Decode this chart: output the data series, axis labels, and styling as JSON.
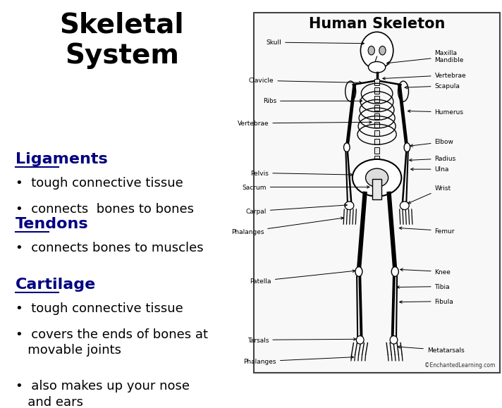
{
  "title": "Skeletal\nSystem",
  "title_color": "#000000",
  "title_fontsize": 28,
  "bg_color": "#ffffff",
  "sections": [
    {
      "heading": "Ligaments",
      "heading_color": "#000080",
      "heading_fontsize": 16,
      "bullets": [
        "tough connective tissue",
        "connects  bones to bones"
      ],
      "bullet_fontsize": 13,
      "bullet_color": "#000000"
    },
    {
      "heading": "Tendons",
      "heading_color": "#000080",
      "heading_fontsize": 16,
      "bullets": [
        "connects bones to muscles"
      ],
      "bullet_fontsize": 13,
      "bullet_color": "#000000"
    },
    {
      "heading": "Cartilage",
      "heading_color": "#000080",
      "heading_fontsize": 16,
      "bullets": [
        "tough connective tissue",
        "covers the ends of bones at\n   movable joints",
        "also makes up your nose\n   and ears"
      ],
      "bullet_fontsize": 13,
      "bullet_color": "#000000"
    }
  ],
  "skeleton_title": "Human Skeleton",
  "skeleton_title_fontsize": 15,
  "copyright": "©EnchantedLearning.com"
}
